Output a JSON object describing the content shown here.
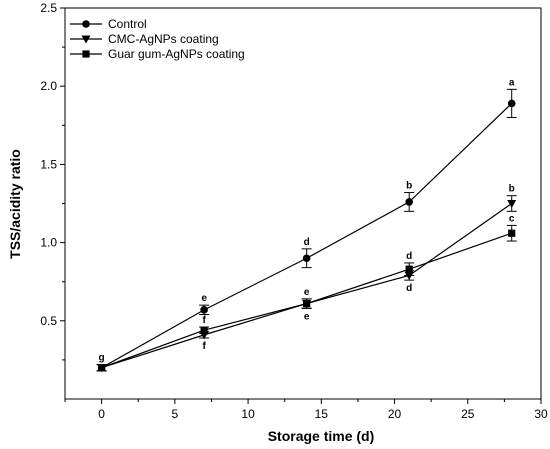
{
  "chart_data": {
    "type": "line",
    "xlabel": "Storage time (d)",
    "ylabel": "TSS/acidity ratio",
    "xlim": [
      -2.5,
      30
    ],
    "ylim": [
      0,
      2.5
    ],
    "xticks": [
      0,
      5,
      10,
      15,
      20,
      25,
      30
    ],
    "xtick_labels": [
      "0",
      "5",
      "10",
      "15",
      "20",
      "25",
      "30"
    ],
    "yticks": [
      0.5,
      1.0,
      1.5,
      2.0,
      2.5
    ],
    "ytick_labels": [
      "0.5",
      "1.0",
      "1.5",
      "2.0",
      "2.5"
    ],
    "legend_position": "top-left",
    "x": [
      0,
      7,
      14,
      21,
      28
    ],
    "series": [
      {
        "name": "Control",
        "marker": "circle",
        "values": [
          0.2,
          0.57,
          0.9,
          1.26,
          1.89
        ],
        "errors": [
          0.02,
          0.03,
          0.06,
          0.06,
          0.09
        ],
        "letters": [
          "g",
          "e",
          "d",
          "b",
          "a"
        ],
        "letter_pos": [
          "above",
          "above",
          "above",
          "above",
          "above"
        ]
      },
      {
        "name": "CMC-AgNPs coating",
        "marker": "triangle-down",
        "values": [
          0.2,
          0.41,
          0.61,
          0.79,
          1.25
        ],
        "errors": [
          0.02,
          0.02,
          0.03,
          0.03,
          0.05
        ],
        "letters": [
          "",
          "f",
          "e",
          "d",
          "b"
        ],
        "letter_pos": [
          "",
          "below",
          "below",
          "below",
          "above"
        ]
      },
      {
        "name": "Guar gum-AgNPs coating",
        "marker": "square",
        "values": [
          0.2,
          0.44,
          0.61,
          0.83,
          1.06
        ],
        "errors": [
          0.02,
          0.02,
          0.03,
          0.04,
          0.05
        ],
        "letters": [
          "",
          "f",
          "e",
          "d",
          "c"
        ],
        "letter_pos": [
          "",
          "above",
          "above",
          "above",
          "above"
        ]
      }
    ]
  }
}
